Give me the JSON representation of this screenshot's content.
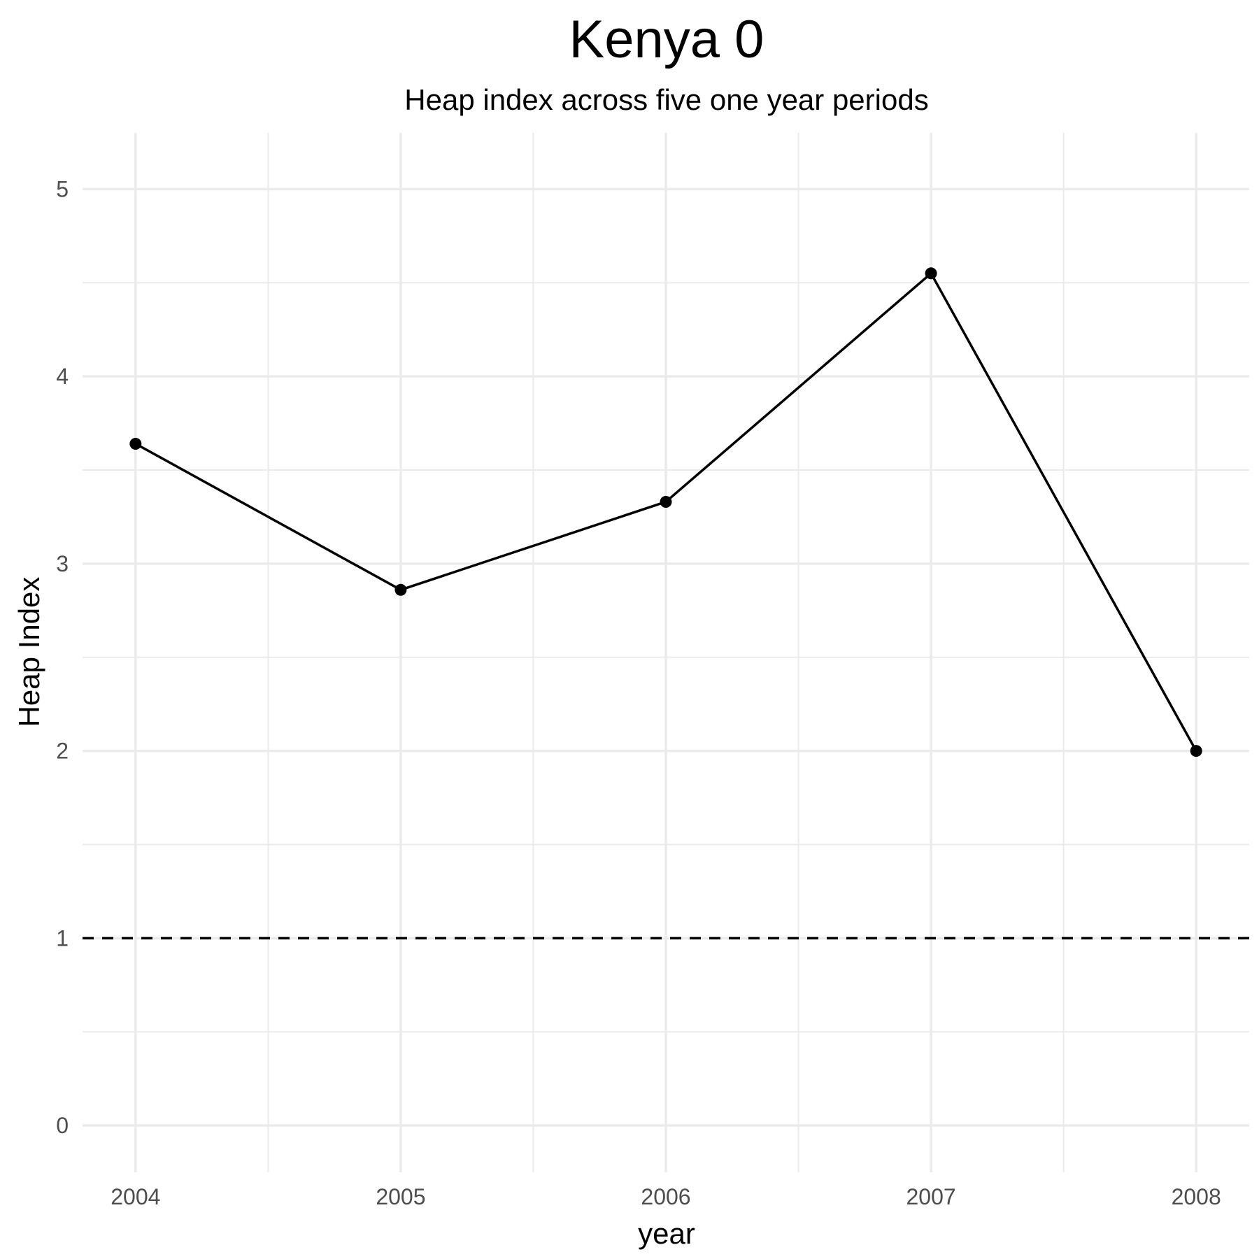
{
  "chart_data": {
    "type": "line",
    "title": "Kenya 0",
    "subtitle": "Heap index across five one year periods",
    "xlabel": "year",
    "ylabel": "Heap Index",
    "x": [
      2004,
      2005,
      2006,
      2007,
      2008
    ],
    "x_tick_labels": [
      "2004",
      "2005",
      "2006",
      "2007",
      "2008"
    ],
    "y_tick_labels": [
      "0",
      "1",
      "2",
      "3",
      "4",
      "5"
    ],
    "series": [
      {
        "values": [
          3.64,
          2.86,
          3.33,
          4.55,
          2.0
        ]
      }
    ],
    "reference_line": {
      "y": 1,
      "style": "dashed"
    },
    "xlim": [
      2003.8,
      2008.2
    ],
    "ylim": [
      -0.25,
      5.3
    ],
    "grid": true,
    "line_color": "#000000",
    "grid_color": "#ebebeb"
  }
}
